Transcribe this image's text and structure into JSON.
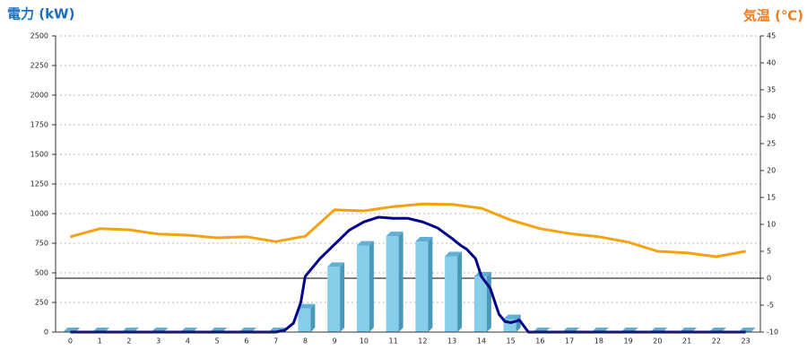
{
  "chart_data": {
    "type": "bar-line",
    "title_left": "電力 (kW)",
    "title_right": "気温 (℃)",
    "categories": [
      "0",
      "1",
      "2",
      "3",
      "4",
      "5",
      "6",
      "7",
      "8",
      "9",
      "10",
      "11",
      "12",
      "13",
      "14",
      "15",
      "16",
      "17",
      "18",
      "19",
      "20",
      "21",
      "22",
      "23"
    ],
    "series": [
      {
        "type": "bar",
        "color": "#87ceeb",
        "values": [
          0,
          0,
          0,
          0,
          0,
          0,
          0,
          0,
          200,
          550,
          730,
          810,
          765,
          640,
          470,
          110,
          0,
          0,
          0,
          0,
          0,
          0,
          0,
          0
        ]
      },
      {
        "type": "line",
        "axis": "y2",
        "color": "#f5a20f",
        "values": [
          7.7,
          9.2,
          9.0,
          8.2,
          8.0,
          7.5,
          7.7,
          6.8,
          7.8,
          12.7,
          12.5,
          13.3,
          13.8,
          13.7,
          13.0,
          10.8,
          9.2,
          8.3,
          7.7,
          6.7,
          5.0,
          4.7,
          4.0,
          5.0
        ]
      },
      {
        "type": "line",
        "color": "#00008b",
        "x": [
          0,
          7,
          7.3,
          7.6,
          7.85,
          8,
          8.5,
          9,
          9.5,
          10,
          10.5,
          11,
          11.5,
          12,
          12.5,
          13,
          13.3,
          13.5,
          13.8,
          14,
          14.3,
          14.6,
          14.8,
          15,
          15.3,
          15.6,
          16,
          23
        ],
        "values": [
          0,
          0,
          15,
          75,
          250,
          470,
          620,
          740,
          860,
          930,
          970,
          960,
          960,
          930,
          880,
          790,
          730,
          700,
          620,
          470,
          370,
          150,
          90,
          80,
          100,
          0,
          0,
          0
        ]
      }
    ],
    "ylim": [
      0,
      2500
    ],
    "yticks": [
      0,
      250,
      500,
      750,
      1000,
      1250,
      1500,
      1750,
      2000,
      2250,
      2500
    ],
    "y2lim": [
      -10,
      45
    ],
    "y2ticks": [
      -10,
      -5,
      0,
      5,
      10,
      15,
      20,
      25,
      30,
      35,
      40,
      45
    ],
    "grid": true
  }
}
